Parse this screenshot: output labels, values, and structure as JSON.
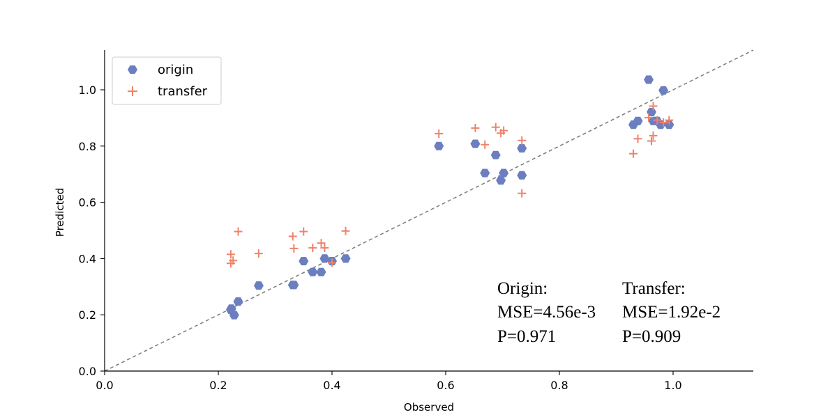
{
  "chart_data": {
    "type": "scatter",
    "xlabel": "Observed",
    "ylabel": "Predicted",
    "xlim": [
      0.0,
      1.14
    ],
    "ylim": [
      0.0,
      1.14
    ],
    "xticks": [
      "0.0",
      "0.2",
      "0.4",
      "0.6",
      "0.8",
      "1.0"
    ],
    "yticks": [
      "0.0",
      "0.2",
      "0.4",
      "0.6",
      "0.8",
      "1.0"
    ],
    "reference_line": "y = x (dashed, gray)",
    "legend_position": "top-left",
    "series": [
      {
        "name": "origin",
        "marker": "hexagon",
        "color": "#6b7fc0",
        "points": [
          [
            0.223,
            0.222
          ],
          [
            0.222,
            0.218
          ],
          [
            0.228,
            0.199
          ],
          [
            0.235,
            0.247
          ],
          [
            0.271,
            0.304
          ],
          [
            0.331,
            0.306
          ],
          [
            0.333,
            0.306
          ],
          [
            0.35,
            0.391
          ],
          [
            0.366,
            0.352
          ],
          [
            0.381,
            0.352
          ],
          [
            0.387,
            0.4
          ],
          [
            0.4,
            0.391
          ],
          [
            0.424,
            0.4
          ],
          [
            0.588,
            0.8
          ],
          [
            0.652,
            0.808
          ],
          [
            0.669,
            0.704
          ],
          [
            0.688,
            0.768
          ],
          [
            0.697,
            0.678
          ],
          [
            0.702,
            0.704
          ],
          [
            0.734,
            0.792
          ],
          [
            0.734,
            0.696
          ],
          [
            0.93,
            0.876
          ],
          [
            0.938,
            0.889
          ],
          [
            0.957,
            1.036
          ],
          [
            0.962,
            0.921
          ],
          [
            0.965,
            0.889
          ],
          [
            0.972,
            0.889
          ],
          [
            0.978,
            0.876
          ],
          [
            0.983,
            0.998
          ],
          [
            0.993,
            0.876
          ]
        ]
      },
      {
        "name": "transfer",
        "marker": "plus",
        "color": "#f0826a",
        "points": [
          [
            0.222,
            0.415
          ],
          [
            0.222,
            0.383
          ],
          [
            0.226,
            0.393
          ],
          [
            0.235,
            0.496
          ],
          [
            0.271,
            0.418
          ],
          [
            0.331,
            0.479
          ],
          [
            0.333,
            0.436
          ],
          [
            0.35,
            0.496
          ],
          [
            0.366,
            0.438
          ],
          [
            0.381,
            0.455
          ],
          [
            0.387,
            0.438
          ],
          [
            0.4,
            0.385
          ],
          [
            0.424,
            0.498
          ],
          [
            0.588,
            0.844
          ],
          [
            0.652,
            0.864
          ],
          [
            0.669,
            0.805
          ],
          [
            0.688,
            0.867
          ],
          [
            0.697,
            0.846
          ],
          [
            0.702,
            0.855
          ],
          [
            0.734,
            0.82
          ],
          [
            0.734,
            0.632
          ],
          [
            0.93,
            0.773
          ],
          [
            0.938,
            0.826
          ],
          [
            0.957,
            0.901
          ],
          [
            0.962,
            0.818
          ],
          [
            0.965,
            0.837
          ],
          [
            0.965,
            0.942
          ],
          [
            0.972,
            0.892
          ],
          [
            0.983,
            0.884
          ],
          [
            0.993,
            0.892
          ]
        ]
      }
    ],
    "annotations": {
      "origin": {
        "title": "Origin:",
        "mse": "MSE=4.56e-3",
        "p": "P=0.971"
      },
      "transfer": {
        "title": "Transfer:",
        "mse": "MSE=1.92e-2",
        "p": "P=0.909"
      }
    }
  }
}
